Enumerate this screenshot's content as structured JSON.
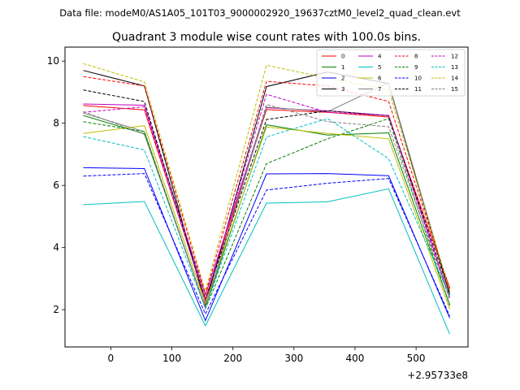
{
  "suptitle": "Data file: modeM0/AS1A05_101T03_9000002920_19637cztM0_level2_quad_clean.evt",
  "chart_data": {
    "type": "line",
    "title": "Quadrant 3 module wise count rates with 100.0s bins.",
    "xlabel": "",
    "ylabel": "",
    "x_offset_label": "+2.95733e8",
    "x": [
      -45,
      55,
      155,
      255,
      355,
      455,
      555
    ],
    "xlim": [
      -75,
      585
    ],
    "ylim": [
      0.8,
      10.45
    ],
    "xticks": [
      0,
      100,
      200,
      300,
      400,
      500
    ],
    "xtick_labels": [
      "0",
      "100",
      "200",
      "300",
      "400",
      "500"
    ],
    "yticks": [
      2,
      4,
      6,
      8,
      10
    ],
    "ytick_labels": [
      "2",
      "4",
      "6",
      "8",
      "10"
    ],
    "grid": false,
    "legend_position": "top-right",
    "series": [
      {
        "name": "0",
        "color": "#ff0000",
        "dash": false,
        "values": [
          8.57,
          8.43,
          2.34,
          8.44,
          8.35,
          8.2,
          2.71
        ]
      },
      {
        "name": "1",
        "color": "#008000",
        "dash": false,
        "values": [
          8.25,
          7.66,
          2.07,
          7.95,
          7.62,
          7.69,
          2.16
        ]
      },
      {
        "name": "2",
        "color": "#0000ff",
        "dash": false,
        "values": [
          6.57,
          6.54,
          1.65,
          6.37,
          6.38,
          6.31,
          1.73
        ]
      },
      {
        "name": "3",
        "color": "#000000",
        "dash": false,
        "values": [
          9.7,
          9.2,
          2.16,
          9.18,
          9.65,
          9.28,
          2.48
        ]
      },
      {
        "name": "4",
        "color": "#bf00bf",
        "dash": false,
        "values": [
          8.62,
          8.58,
          2.47,
          8.5,
          8.4,
          8.25,
          2.39
        ]
      },
      {
        "name": "5",
        "color": "#00bfbf",
        "dash": false,
        "values": [
          5.38,
          5.48,
          1.48,
          5.43,
          5.47,
          5.89,
          1.21
        ]
      },
      {
        "name": "6",
        "color": "#bfbf00",
        "dash": false,
        "values": [
          7.67,
          7.92,
          2.2,
          7.88,
          7.67,
          7.5,
          2.01
        ]
      },
      {
        "name": "7",
        "color": "#808080",
        "dash": false,
        "values": [
          8.33,
          7.73,
          2.06,
          8.52,
          8.37,
          9.3,
          2.57
        ]
      },
      {
        "name": "8",
        "color": "#ff0000",
        "dash": true,
        "values": [
          9.5,
          9.2,
          2.5,
          9.35,
          9.2,
          8.7,
          2.66
        ]
      },
      {
        "name": "9",
        "color": "#008000",
        "dash": true,
        "values": [
          8.05,
          7.73,
          2.03,
          6.7,
          7.5,
          8.15,
          2.12
        ]
      },
      {
        "name": "10",
        "color": "#0000ff",
        "dash": true,
        "values": [
          6.3,
          6.38,
          1.86,
          5.85,
          6.07,
          6.22,
          1.8
        ]
      },
      {
        "name": "11",
        "color": "#000000",
        "dash": true,
        "values": [
          9.07,
          8.7,
          2.33,
          8.12,
          8.4,
          8.24,
          2.54
        ]
      },
      {
        "name": "12",
        "color": "#bf00bf",
        "dash": true,
        "values": [
          8.35,
          8.53,
          2.28,
          8.93,
          8.35,
          8.25,
          2.32
        ]
      },
      {
        "name": "13",
        "color": "#00bfbf",
        "dash": true,
        "values": [
          7.57,
          7.14,
          2.05,
          7.56,
          8.15,
          6.86,
          2.44
        ]
      },
      {
        "name": "14",
        "color": "#bfbf00",
        "dash": true,
        "values": [
          9.92,
          9.33,
          2.6,
          9.87,
          9.45,
          9.08,
          2.6
        ]
      },
      {
        "name": "15",
        "color": "#808080",
        "dash": true,
        "values": [
          8.38,
          7.64,
          2.05,
          8.61,
          8.05,
          7.89,
          2.35
        ]
      }
    ]
  }
}
